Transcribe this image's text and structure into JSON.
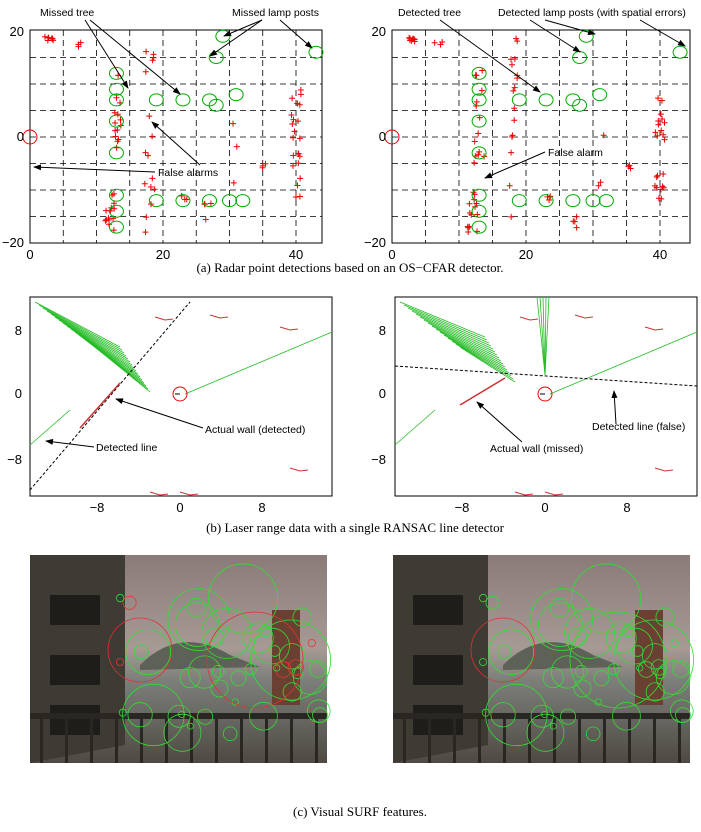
{
  "panels": [
    {
      "caption": "(a)  Radar point detections based on an OS−CFAR detector.",
      "plots": [
        {
          "yticks": [
            "20",
            "0",
            "−20"
          ],
          "xticks": [
            "0",
            "20",
            "40"
          ],
          "annotations": [
            "Missed tree",
            "Missed lamp posts",
            "False alarms"
          ]
        },
        {
          "yticks": [
            "20",
            "0",
            "−20"
          ],
          "xticks": [
            "0",
            "20",
            "40"
          ],
          "annotations": [
            "Detected tree",
            "Detected lamp posts (with spatial errors)",
            "False alarm"
          ]
        }
      ]
    },
    {
      "caption": "(b) Laser range data with a single RANSAC line detector",
      "plots": [
        {
          "yticks": [
            "8",
            "0",
            "−8"
          ],
          "xticks": [
            "−8",
            "0",
            "8"
          ],
          "annotations": [
            "Actual wall (detected)",
            "Detected line"
          ]
        },
        {
          "yticks": [
            "8",
            "0",
            "−8"
          ],
          "xticks": [
            "−8",
            "0",
            "8"
          ],
          "annotations": [
            "Detected line (false)",
            "Actual wall (missed)"
          ]
        }
      ]
    },
    {
      "caption": "(c) Visual SURF features."
    }
  ]
}
